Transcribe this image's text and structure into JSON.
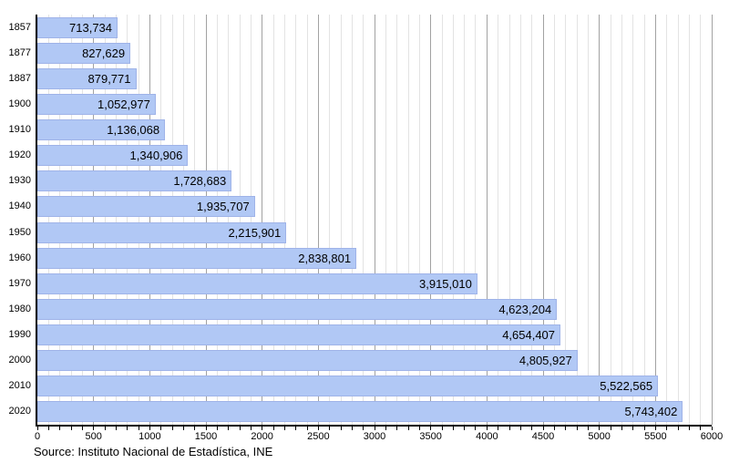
{
  "chart_data": {
    "type": "bar",
    "orientation": "horizontal",
    "title": "",
    "xlabel": "",
    "ylabel": "",
    "categories": [
      "1857",
      "1877",
      "1887",
      "1900",
      "1910",
      "1920",
      "1930",
      "1940",
      "1950",
      "1960",
      "1970",
      "1980",
      "1990",
      "2000",
      "2010",
      "2020"
    ],
    "values": [
      713734,
      827629,
      879771,
      1052977,
      1136068,
      1340906,
      1728683,
      1935707,
      2215901,
      2838801,
      3915010,
      4623204,
      4654407,
      4805927,
      5522565,
      5743402
    ],
    "value_labels": [
      "713,734",
      "827,629",
      "879,771",
      "1,052,977",
      "1,136,068",
      "1,340,906",
      "1,728,683",
      "1,935,707",
      "2,215,901",
      "2,838,801",
      "3,915,010",
      "4,623,204",
      "4,654,407",
      "4,805,927",
      "5,522,565",
      "5,743,402"
    ],
    "axis_unit_divisor": 1000,
    "xlim": [
      0,
      6000
    ],
    "x_major_step": 500,
    "x_minor_step": 100,
    "x_tick_labels": [
      "0",
      "500",
      "1000",
      "1500",
      "2000",
      "2500",
      "3000",
      "3500",
      "4000",
      "4500",
      "5000",
      "5500",
      "6000"
    ],
    "grid": "vertical minor and major gridlines, bars drawn over grid",
    "legend": "none"
  },
  "source": "Source: Instituto Nacional de Estadística, INE",
  "colors": {
    "bar_fill": "#b1c8f5",
    "bar_border": "#9fb3e8",
    "grid_minor": "#e3e3e3",
    "grid_major": "#a2a2a2",
    "axis": "#000000",
    "text": "#000000",
    "background": "#ffffff"
  }
}
